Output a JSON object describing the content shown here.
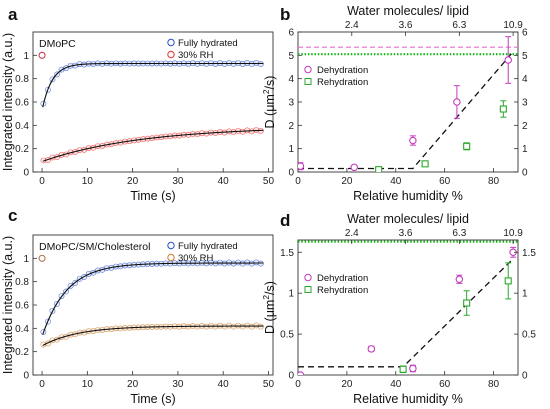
{
  "chart_data": [
    {
      "panel": "a",
      "type": "scatter",
      "inset_label": "DMoPC",
      "xlabel": "Time (s)",
      "ylabel": "Integrated intensity (a.u.)",
      "xlim": [
        -2,
        51
      ],
      "ylim": [
        0,
        1.2
      ],
      "xticks": [
        0,
        10,
        20,
        30,
        40,
        50
      ],
      "yticks": [
        0,
        0.2,
        0.4,
        0.6,
        0.8,
        1
      ],
      "xtick_labels": [
        "0",
        "10",
        "20",
        "30",
        "40",
        "50"
      ],
      "ytick_labels": [
        "0",
        "0.2",
        "0.4",
        "0.6",
        "0.8",
        "1"
      ],
      "legend": [
        "Fully hydrated",
        "30% RH"
      ],
      "legend_position": "top-right",
      "series": [
        {
          "name": "Fully hydrated",
          "color": "#2b50c8",
          "prebleach": [
            0,
            1.0
          ],
          "fit": {
            "y0": 0.53,
            "plateau": 0.93,
            "tau": 2.2
          }
        },
        {
          "name": "30% RH",
          "color": "#e8322e",
          "prebleach": [
            0,
            1.0
          ],
          "fit": {
            "y0": 0.09,
            "plateau": 0.39,
            "tau": 22
          }
        }
      ]
    },
    {
      "panel": "b",
      "type": "scatter",
      "xlabel": "Relative humidity %",
      "ylabel": "D (μm²/s)",
      "top_xlabel": "Water molecules/ lipid",
      "xlim": [
        0,
        90
      ],
      "ylim": [
        0,
        6
      ],
      "xticks": [
        0,
        20,
        40,
        60,
        80
      ],
      "yticks": [
        0,
        1,
        2,
        3,
        4,
        5,
        6
      ],
      "xtick_labels": [
        "0",
        "20",
        "40",
        "60",
        "80"
      ],
      "ytick_labels": [
        "0",
        "1",
        "2",
        "3",
        "4",
        "5",
        "6"
      ],
      "top_ticks": [
        {
          "x": 22,
          "label": "2.4"
        },
        {
          "x": 44,
          "label": "3.6"
        },
        {
          "x": 66,
          "label": "6.3"
        },
        {
          "x": 88,
          "label": "10.9"
        }
      ],
      "right_ticks": [
        0,
        1,
        2,
        3,
        4,
        5,
        6
      ],
      "legend": [
        "Dehydration",
        "Rehydration"
      ],
      "legend_position": "top-left",
      "reference_lines": [
        {
          "y": 5.35,
          "color": "#e86bd0",
          "style": "dashed"
        },
        {
          "y": 5.05,
          "color": "#12b812",
          "style": "dotted"
        }
      ],
      "fit_line": [
        [
          0,
          0.15
        ],
        [
          47,
          0.15
        ],
        [
          88,
          5.15
        ]
      ],
      "series": [
        {
          "name": "Dehydration",
          "marker": "circle",
          "color": "#c43cc0",
          "points": [
            [
              1,
              0.25,
              0.15
            ],
            [
              23,
              0.2,
              0.05
            ],
            [
              47,
              1.35,
              0.2
            ],
            [
              65,
              3.0,
              0.7
            ],
            [
              86,
              4.8,
              1.0
            ]
          ]
        },
        {
          "name": "Rehydration",
          "marker": "square",
          "color": "#2aa82a",
          "points": [
            [
              33,
              0.1,
              0.05
            ],
            [
              52,
              0.35,
              0.1
            ],
            [
              69,
              1.1,
              0.15
            ],
            [
              84,
              2.7,
              0.35
            ]
          ]
        }
      ]
    },
    {
      "panel": "c",
      "type": "scatter",
      "inset_label": "DMoPC/SM/Cholesterol",
      "xlabel": "Time (s)",
      "ylabel": "Integrated intensity (a.u.)",
      "xlim": [
        -2,
        51
      ],
      "ylim": [
        0,
        1.2
      ],
      "xticks": [
        0,
        10,
        20,
        30,
        40,
        50
      ],
      "yticks": [
        0,
        0.2,
        0.4,
        0.6,
        0.8,
        1
      ],
      "xtick_labels": [
        "0",
        "10",
        "20",
        "30",
        "40",
        "50"
      ],
      "ytick_labels": [
        "0",
        "0.2",
        "0.4",
        "0.6",
        "0.8",
        "1"
      ],
      "legend": [
        "Fully hydrated",
        "30% RH"
      ],
      "legend_position": "top-right",
      "series": [
        {
          "name": "Fully hydrated",
          "color": "#2b50c8",
          "prebleach": [
            0,
            1.0
          ],
          "fit": {
            "y0": 0.33,
            "plateau": 0.96,
            "tau": 5.5
          }
        },
        {
          "name": "30% RH",
          "color": "#c97a2e",
          "prebleach": [
            0,
            1.0
          ],
          "fit": {
            "y0": 0.25,
            "plateau": 0.42,
            "tau": 8
          }
        }
      ]
    },
    {
      "panel": "d",
      "type": "scatter",
      "xlabel": "Relative humidity %",
      "ylabel": "D (μm²/s)",
      "top_xlabel": "Water molecules/ lipid",
      "xlim": [
        0,
        90
      ],
      "ylim": [
        0,
        1.65
      ],
      "xticks": [
        0,
        20,
        40,
        60,
        80
      ],
      "yticks": [
        0,
        0.5,
        1,
        1.5
      ],
      "xtick_labels": [
        "0",
        "20",
        "40",
        "60",
        "80"
      ],
      "ytick_labels": [
        "0",
        "0.5",
        "1",
        "1.5"
      ],
      "top_ticks": [
        {
          "x": 22,
          "label": "2.4"
        },
        {
          "x": 44,
          "label": "3.6"
        },
        {
          "x": 66,
          "label": "6.3"
        },
        {
          "x": 88,
          "label": "10.9"
        }
      ],
      "right_ticks": [
        0,
        0.5,
        1,
        1.5
      ],
      "legend": [
        "Dehydration",
        "Rehydration"
      ],
      "legend_position": "top-left",
      "reference_lines": [
        {
          "y": 1.66,
          "color": "#e86bd0",
          "style": "dashed"
        },
        {
          "y": 1.63,
          "color": "#12b812",
          "style": "dotted"
        }
      ],
      "fit_line": [
        [
          0,
          0.1
        ],
        [
          43,
          0.1
        ],
        [
          88,
          1.42
        ]
      ],
      "series": [
        {
          "name": "Dehydration",
          "marker": "circle",
          "color": "#c43cc0",
          "points": [
            [
              1,
              0.0,
              0.02
            ],
            [
              30,
              0.32,
              0.03
            ],
            [
              47,
              0.08,
              0.04
            ],
            [
              66,
              1.17,
              0.05
            ],
            [
              88,
              1.5,
              0.06
            ]
          ]
        },
        {
          "name": "Rehydration",
          "marker": "square",
          "color": "#2aa82a",
          "points": [
            [
              43,
              0.07,
              0.04
            ],
            [
              69,
              0.88,
              0.15
            ],
            [
              86,
              1.15,
              0.22
            ]
          ]
        }
      ]
    }
  ]
}
